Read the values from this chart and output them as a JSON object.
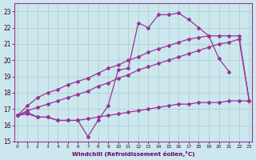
{
  "xlabel": "Windchill (Refroidissement éolien,°C)",
  "background_color": "#cce8ee",
  "grid_color": "#aacccc",
  "line_color": "#993399",
  "x_hours": [
    0,
    1,
    2,
    3,
    4,
    5,
    6,
    7,
    8,
    9,
    10,
    11,
    12,
    13,
    14,
    15,
    16,
    17,
    18,
    19,
    20,
    21,
    22,
    23
  ],
  "y_zigzag": [
    16.6,
    16.8,
    16.5,
    16.5,
    16.3,
    16.3,
    16.3,
    15.3,
    16.3,
    17.2,
    19.4,
    19.5,
    22.3,
    22.0,
    22.8,
    22.8,
    22.9,
    22.5,
    22.0,
    21.5,
    20.1,
    19.3,
    null,
    null
  ],
  "y_upper": [
    16.6,
    17.2,
    17.7,
    18.0,
    18.2,
    18.5,
    18.7,
    18.9,
    19.2,
    19.5,
    19.7,
    20.0,
    20.2,
    20.5,
    20.7,
    20.9,
    21.1,
    21.3,
    21.4,
    21.5,
    21.5,
    21.5,
    21.5,
    17.5
  ],
  "y_lower": [
    16.6,
    16.9,
    17.1,
    17.3,
    17.5,
    17.7,
    17.9,
    18.1,
    18.4,
    18.6,
    18.9,
    19.1,
    19.4,
    19.6,
    19.8,
    20.0,
    20.2,
    20.4,
    20.6,
    20.8,
    21.0,
    21.1,
    21.3,
    17.5
  ],
  "y_flat": [
    16.6,
    16.7,
    16.5,
    16.5,
    16.3,
    16.3,
    16.3,
    16.4,
    16.5,
    16.6,
    16.7,
    16.8,
    16.9,
    17.0,
    17.1,
    17.2,
    17.3,
    17.3,
    17.4,
    17.4,
    17.4,
    17.5,
    17.5,
    17.5
  ],
  "ylim": [
    15,
    23.5
  ],
  "xlim": [
    -0.3,
    23.3
  ]
}
